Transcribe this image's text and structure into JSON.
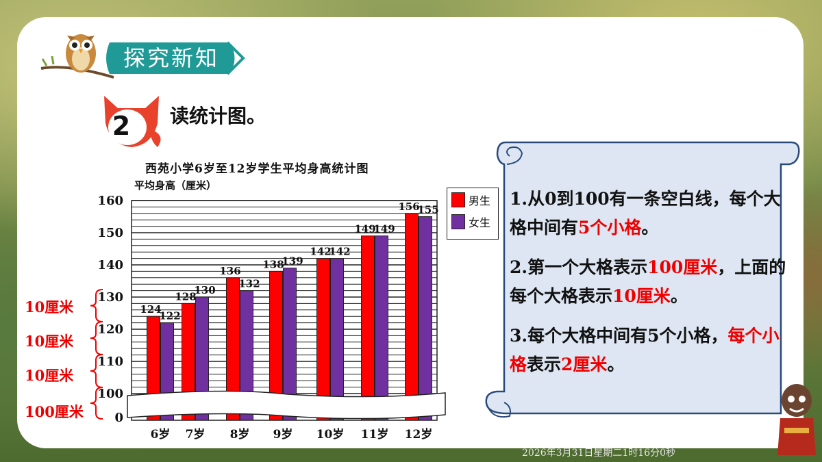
{
  "header": {
    "section_tag": "探究新知"
  },
  "problem": {
    "number": "2",
    "title": "读统计图。"
  },
  "chart_data": {
    "type": "bar",
    "title": "西苑小学6岁至12岁学生平均身高统计图",
    "ylabel": "平均身高（厘米）",
    "categories": [
      "6岁",
      "7岁",
      "8岁",
      "9岁",
      "10岁",
      "11岁",
      "12岁"
    ],
    "series": [
      {
        "name": "男生",
        "color": "#ff0000",
        "values": [
          124,
          128,
          136,
          138,
          142,
          149,
          156
        ]
      },
      {
        "name": "女生",
        "color": "#7030a0",
        "values": [
          122,
          130,
          132,
          139,
          142,
          149,
          155
        ]
      }
    ],
    "yticks": [
      "0",
      "100",
      "110",
      "120",
      "130",
      "140",
      "150",
      "160"
    ],
    "ylim": [
      100,
      160
    ],
    "axis_break": true,
    "legend_position": "right"
  },
  "annotations": [
    "10厘米",
    "10厘米",
    "10厘米",
    "100厘米"
  ],
  "notes": [
    {
      "parts": [
        {
          "t": "1.从0到100有一条空白线，每个大格中间有"
        },
        {
          "t": "5个小格",
          "red": true
        },
        {
          "t": "。"
        }
      ]
    },
    {
      "parts": [
        {
          "t": "2.第一个大格表示"
        },
        {
          "t": "100厘米",
          "red": true
        },
        {
          "t": "，上面的每个大格表示"
        },
        {
          "t": "10厘米",
          "red": true
        },
        {
          "t": "。"
        }
      ]
    },
    {
      "parts": [
        {
          "t": "3.每个大格中间有5个小格"
        },
        {
          "t": "，"
        },
        {
          "t": "每个小格",
          "red": true
        },
        {
          "t": "表示"
        },
        {
          "t": "2厘米",
          "red": true
        },
        {
          "t": "。"
        }
      ]
    }
  ],
  "footer": {
    "timestamp": "2026年3月31日星期二1时16分0秒"
  }
}
